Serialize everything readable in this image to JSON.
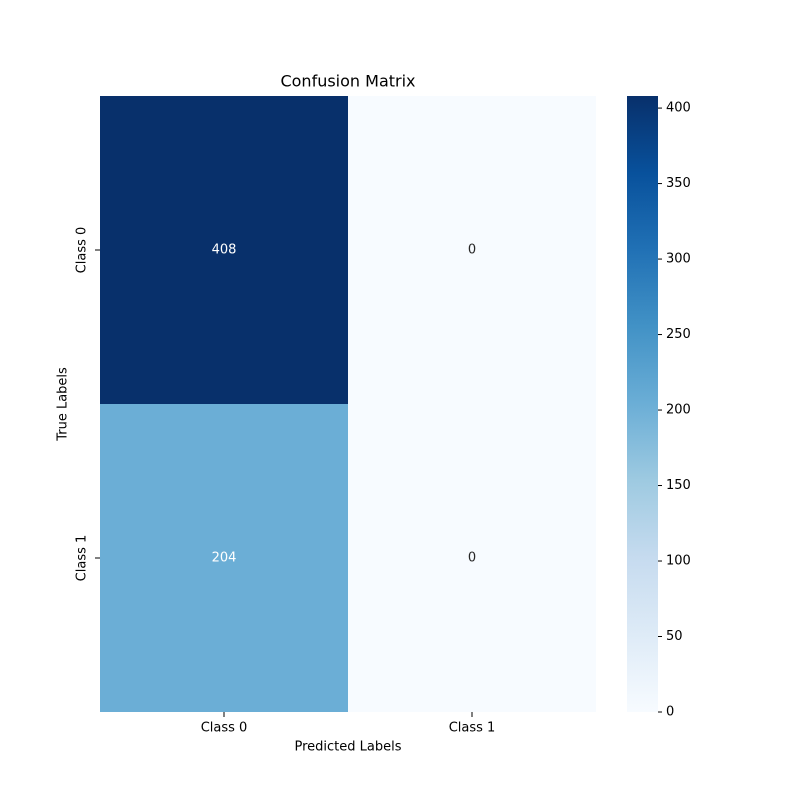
{
  "chart_data": {
    "type": "heatmap",
    "title": "Confusion Matrix",
    "xlabel": "Predicted Labels",
    "ylabel": "True Labels",
    "x_categories": [
      "Class 0",
      "Class 1"
    ],
    "y_categories": [
      "Class 0",
      "Class 1"
    ],
    "values": [
      [
        408,
        0
      ],
      [
        204,
        0
      ]
    ],
    "colorscale": [
      "#f7fbff",
      "#deebf7",
      "#c6dbef",
      "#9ecae1",
      "#6baed6",
      "#4292c6",
      "#2171b5",
      "#08519c",
      "#08306b"
    ],
    "clim": [
      0,
      408
    ],
    "cticks": [
      0,
      50,
      100,
      150,
      200,
      250,
      300,
      350,
      400
    ]
  }
}
